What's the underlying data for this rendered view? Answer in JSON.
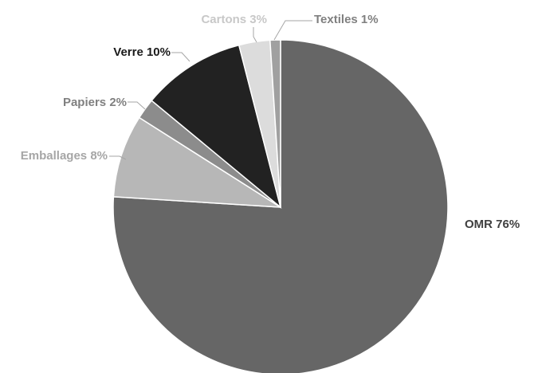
{
  "chart_data": {
    "type": "pie",
    "title": "",
    "slices": [
      {
        "label": "OMR",
        "value": 76,
        "display": "OMR 76%",
        "color": "#666666",
        "label_color": "#404040"
      },
      {
        "label": "Emballages",
        "value": 8,
        "display": "Emballages 8%",
        "color": "#b7b7b7",
        "label_color": "#a6a6a6"
      },
      {
        "label": "Papiers",
        "value": 2,
        "display": "Papiers 2%",
        "color": "#8c8c8c",
        "label_color": "#808080"
      },
      {
        "label": "Verre",
        "value": 10,
        "display": "Verre 10%",
        "color": "#222222",
        "label_color": "#1a1a1a"
      },
      {
        "label": "Cartons",
        "value": 3,
        "display": "Cartons 3%",
        "color": "#dcdcdc",
        "label_color": "#c8c8c8"
      },
      {
        "label": "Textiles",
        "value": 1,
        "display": "Textiles 1%",
        "color": "#a0a0a0",
        "label_color": "#808080"
      }
    ],
    "start_angle_deg": 0,
    "direction": "clockwise",
    "legend": "none",
    "slice_border_color": "#ffffff"
  }
}
